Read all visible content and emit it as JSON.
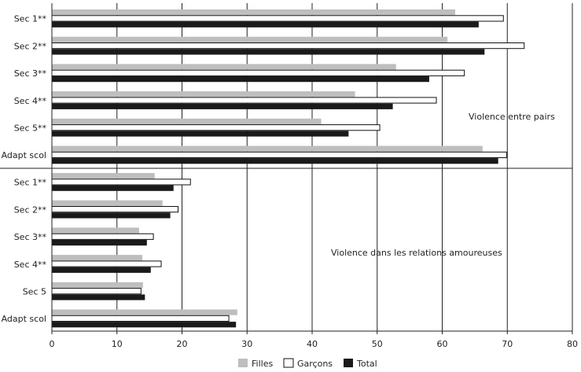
{
  "chart_data": {
    "type": "bar",
    "orientation": "horizontal",
    "xlim": [
      0,
      80
    ],
    "xticks": [
      0,
      10,
      20,
      30,
      40,
      50,
      60,
      70,
      80
    ],
    "grid": true,
    "legend_position": "bottom-center",
    "series": [
      {
        "name": "Filles",
        "color": "#bebebe"
      },
      {
        "name": "Garçons",
        "color": "#ffffff"
      },
      {
        "name": "Total",
        "color": "#1a1a1a"
      }
    ],
    "panels": [
      {
        "annotation": "Violence entre pairs",
        "categories": [
          "Sec 1**",
          "Sec 2**",
          "Sec 3**",
          "Sec 4**",
          "Sec 5**",
          "Adapt scol"
        ],
        "values": {
          "Filles": [
            62.0,
            60.8,
            52.9,
            46.6,
            41.4,
            66.2
          ],
          "Garçons": [
            69.4,
            72.6,
            63.4,
            59.1,
            50.4,
            69.9
          ],
          "Total": [
            65.6,
            66.5,
            58.0,
            52.4,
            45.6,
            68.6
          ]
        }
      },
      {
        "annotation": "Violence dans les relations amoureuses",
        "categories": [
          "Sec 1**",
          "Sec 2**",
          "Sec 3**",
          "Sec 4**",
          "Sec 5",
          "Adapt scol"
        ],
        "values": {
          "Filles": [
            15.8,
            17.0,
            13.4,
            13.9,
            14.0,
            28.5
          ],
          "Garçons": [
            21.3,
            19.4,
            15.6,
            16.8,
            13.7,
            27.2
          ],
          "Total": [
            18.7,
            18.2,
            14.6,
            15.2,
            14.3,
            28.3
          ]
        }
      }
    ]
  }
}
